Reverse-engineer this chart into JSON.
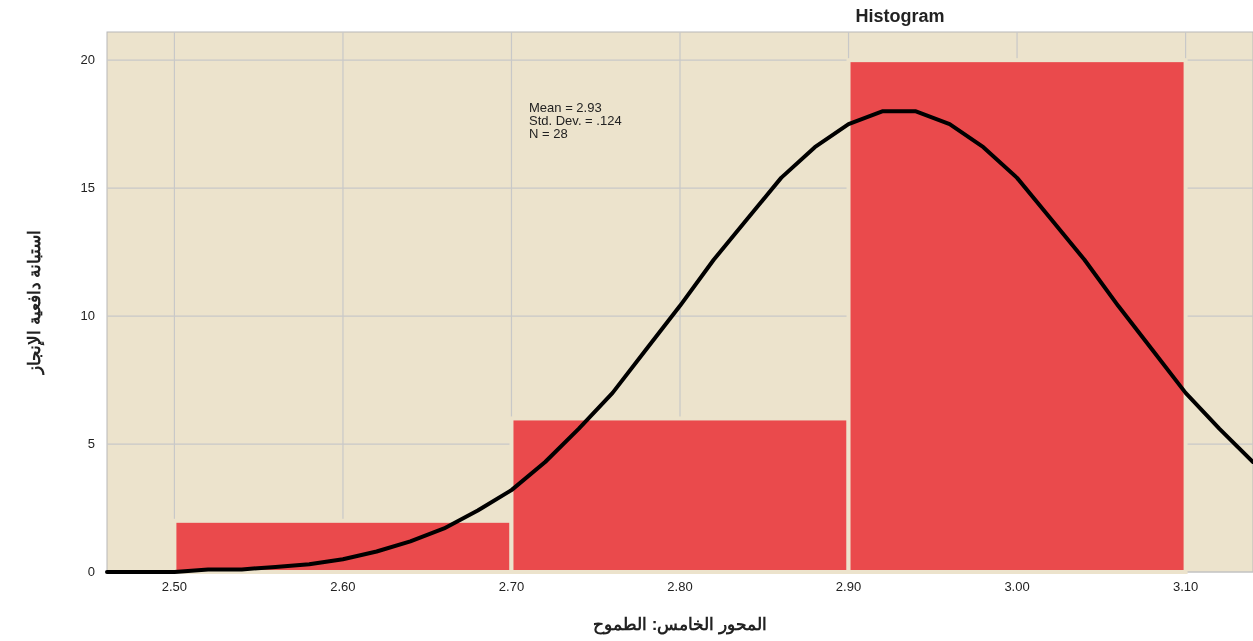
{
  "chart_data": {
    "type": "histogram",
    "title": "Histogram",
    "xlabel": "المحور الخامس: الطموح",
    "ylabel": "استبانة دافعية الإنجاز",
    "bins": [
      2.5,
      2.7,
      2.9,
      3.1
    ],
    "values": [
      2,
      6,
      20
    ],
    "color": "#ea4a4c",
    "series": [
      {
        "type": "line",
        "color": "#000000",
        "x": [
          2.46,
          2.48,
          2.5,
          2.52,
          2.54,
          2.56,
          2.58,
          2.6,
          2.62,
          2.64,
          2.66,
          2.68,
          2.7,
          2.72,
          2.74,
          2.76,
          2.78,
          2.8,
          2.82,
          2.84,
          2.86,
          2.88,
          2.9,
          2.92,
          2.94,
          2.96,
          2.98,
          3.0,
          3.02,
          3.04,
          3.06,
          3.08,
          3.1,
          3.12,
          3.14
        ],
        "values": [
          0.0,
          0.0,
          0.0,
          0.1,
          0.1,
          0.2,
          0.3,
          0.5,
          0.8,
          1.2,
          1.7,
          2.4,
          3.2,
          4.3,
          5.6,
          7.0,
          8.7,
          10.4,
          12.2,
          13.8,
          15.4,
          16.6,
          17.5,
          18.0,
          18.0,
          17.5,
          16.6,
          15.4,
          13.8,
          12.2,
          10.4,
          8.7,
          7.0,
          5.6,
          4.3
        ]
      }
    ],
    "annotations": [
      "Mean = 2.93",
      "Std. Dev. = .124",
      "N = 28"
    ],
    "xlim": [
      2.46,
      3.14
    ],
    "ylim": [
      0,
      21.1
    ],
    "xticks": [
      {
        "value": 2.5,
        "label": "2.50"
      },
      {
        "value": 2.6,
        "label": "2.60"
      },
      {
        "value": 2.7,
        "label": "2.70"
      },
      {
        "value": 2.8,
        "label": "2.80"
      },
      {
        "value": 2.9,
        "label": "2.90"
      },
      {
        "value": 3.0,
        "label": "3.00"
      },
      {
        "value": 3.1,
        "label": "3.10"
      }
    ],
    "yticks": [
      0,
      5,
      10,
      15,
      20
    ],
    "grid": true,
    "marker": "none",
    "line_style": "solid"
  }
}
